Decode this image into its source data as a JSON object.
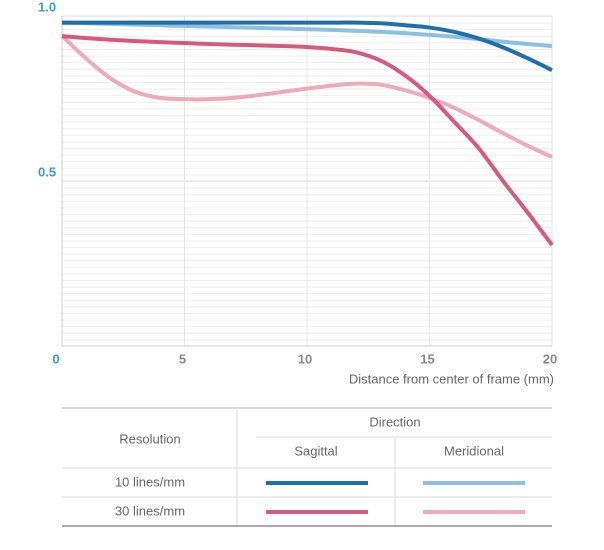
{
  "chart_data": {
    "type": "line",
    "x_label": "Distance from center of frame (mm)",
    "x": [
      0,
      1,
      2,
      3,
      4,
      5,
      6,
      7,
      8,
      9,
      10,
      11,
      12,
      13,
      14,
      15,
      16,
      17,
      18,
      19,
      20
    ],
    "xlim": [
      0,
      20
    ],
    "xticks": [
      0,
      5,
      10,
      15,
      20
    ],
    "ylim": [
      0,
      1
    ],
    "yticks": [
      {
        "value": 0.5,
        "label": "0.5"
      },
      {
        "value": 1,
        "label": "1.0"
      }
    ],
    "grid": true,
    "row_header": "Resolution",
    "group_header": "Direction",
    "directions": [
      "Sagittal",
      "Meridional"
    ],
    "series": [
      {
        "name": "10 lines/mm",
        "colors": [
          "#1f6fa9",
          "#8dbfe0"
        ],
        "values": [
          [
            0.98,
            0.98,
            0.98,
            0.98,
            0.98,
            0.98,
            0.98,
            0.98,
            0.98,
            0.98,
            0.98,
            0.98,
            0.98,
            0.978,
            0.972,
            0.965,
            0.952,
            0.932,
            0.905,
            0.872,
            0.836
          ],
          [
            0.98,
            0.978,
            0.976,
            0.974,
            0.972,
            0.97,
            0.968,
            0.966,
            0.964,
            0.962,
            0.96,
            0.958,
            0.955,
            0.952,
            0.948,
            0.943,
            0.937,
            0.93,
            0.922,
            0.915,
            0.909
          ]
        ]
      },
      {
        "name": "30 lines/mm",
        "colors": [
          "#d65a7d",
          "#eeaabd"
        ],
        "values": [
          [
            0.939,
            0.933,
            0.928,
            0.924,
            0.921,
            0.918,
            0.915,
            0.913,
            0.911,
            0.909,
            0.906,
            0.9,
            0.89,
            0.865,
            0.82,
            0.758,
            0.68,
            0.6,
            0.5,
            0.405,
            0.306
          ],
          [
            0.94,
            0.87,
            0.81,
            0.77,
            0.752,
            0.748,
            0.748,
            0.752,
            0.76,
            0.77,
            0.78,
            0.789,
            0.795,
            0.792,
            0.775,
            0.752,
            0.722,
            0.685,
            0.645,
            0.607,
            0.573
          ]
        ]
      }
    ]
  }
}
